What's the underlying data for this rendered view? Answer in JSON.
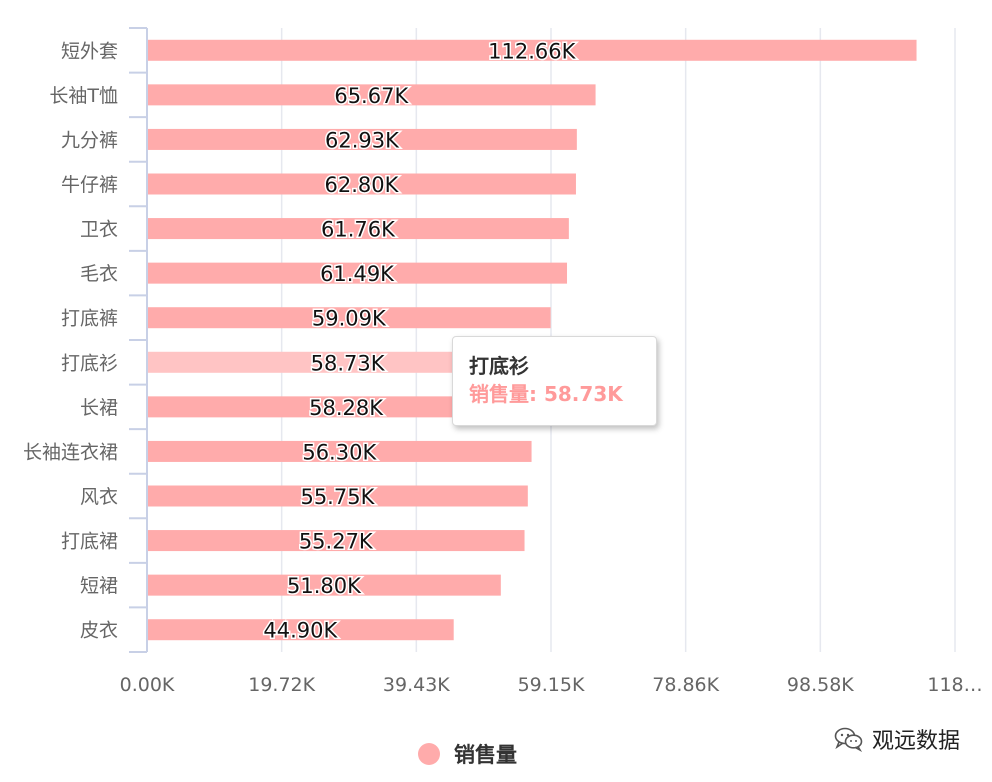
{
  "chart_data": {
    "type": "bar",
    "orientation": "horizontal",
    "categories": [
      "短外套",
      "长袖T恤",
      "九分裤",
      "牛仔裤",
      "卫衣",
      "毛衣",
      "打底裤",
      "打底衫",
      "长裙",
      "长袖连衣裙",
      "风衣",
      "打底裙",
      "短裙",
      "皮衣"
    ],
    "series": [
      {
        "name": "销售量",
        "values": [
          112.66,
          65.67,
          62.93,
          62.8,
          61.76,
          61.49,
          59.09,
          58.73,
          58.28,
          56.3,
          55.75,
          55.27,
          51.8,
          44.9
        ],
        "data_labels": [
          "112.66K",
          "65.67K",
          "62.93K",
          "62.80K",
          "61.76K",
          "61.49K",
          "59.09K",
          "58.73K",
          "58.28K",
          "56.30K",
          "55.75K",
          "55.27K",
          "51.80K",
          "44.90K"
        ],
        "color": "#ffabab",
        "highlight_color": "#ffc4c4"
      }
    ],
    "x_ticks": [
      "0.00K",
      "19.72K",
      "39.43K",
      "59.15K",
      "78.86K",
      "98.58K",
      "118…"
    ],
    "xlim": [
      0,
      118.29
    ],
    "unit": "K",
    "grid": true,
    "legend_position": "bottom-center",
    "highlighted_category": "打底衫"
  },
  "tooltip": {
    "title": "打底衫",
    "series_name": "销售量",
    "value": "58.73K",
    "separator": ": "
  },
  "legend": {
    "label": "销售量",
    "color": "#ffabab"
  },
  "watermark": {
    "text": "观远数据",
    "icon": "wechat-icon"
  }
}
